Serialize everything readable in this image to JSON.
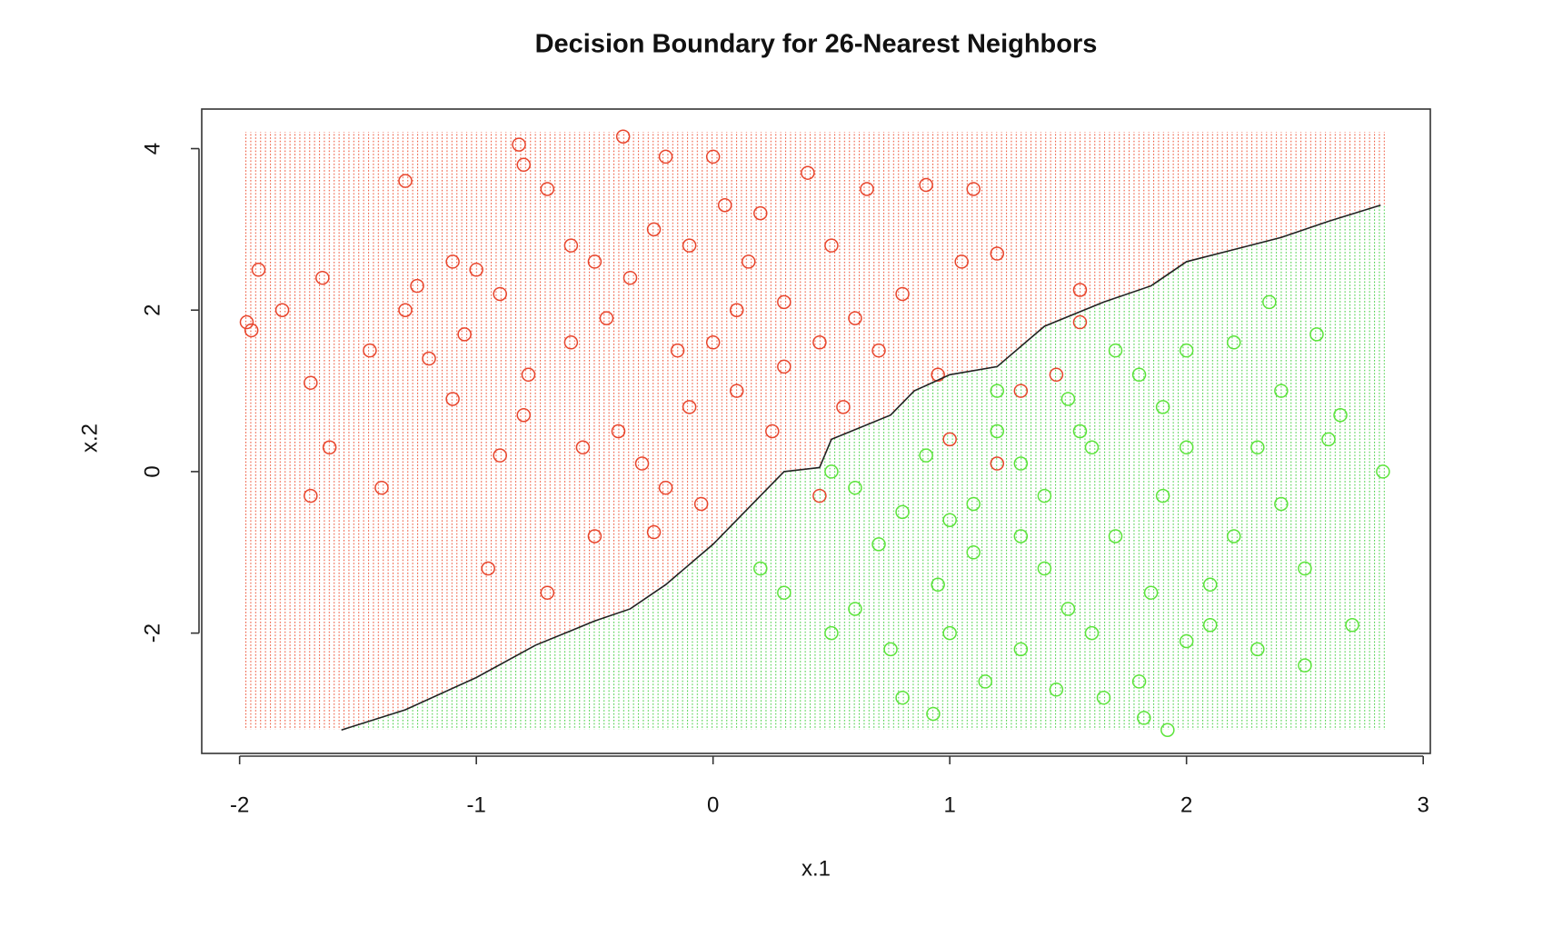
{
  "chart_data": {
    "type": "scatter",
    "title": "Decision Boundary for 26-Nearest Neighbors",
    "x_label": "x.1",
    "y_label": "x.2",
    "xlim": [
      -2.16,
      3.03
    ],
    "ylim": [
      -3.49,
      4.49
    ],
    "xticks": [
      -2,
      -1,
      0,
      1,
      2,
      3
    ],
    "yticks": [
      -2,
      0,
      2,
      4
    ],
    "series": [
      {
        "color": "#e8452c",
        "x": [
          -1.97,
          -1.95,
          -1.92,
          -1.82,
          -1.7,
          -1.7,
          -1.65,
          -1.62,
          -1.45,
          -1.4,
          -1.3,
          -1.25,
          -1.2,
          -1.1,
          -1.05,
          -1.0,
          -0.95,
          -0.9,
          -0.82,
          -0.8,
          -0.78,
          -0.7,
          -0.7,
          -0.6,
          -0.55,
          -0.5,
          -0.45,
          -0.38,
          -0.35,
          -0.3,
          -0.25,
          -0.25,
          -0.2,
          -0.15,
          -0.1,
          -0.05,
          0.0,
          0.05,
          0.1,
          0.15,
          0.2,
          0.25,
          0.3,
          0.4,
          0.45,
          0.45,
          0.5,
          0.55,
          0.65,
          0.7,
          0.8,
          0.9,
          0.95,
          1.05,
          1.1,
          1.2,
          1.3,
          1.45,
          1.55,
          1.55,
          -1.3,
          -0.9,
          -0.6,
          -0.4,
          -0.1,
          0.1,
          0.3,
          -0.5,
          -1.1,
          0.6,
          1.0,
          1.2,
          -0.2,
          0.0,
          -0.8
        ],
        "values": [
          1.85,
          1.75,
          2.5,
          2.0,
          1.1,
          -0.3,
          2.4,
          0.3,
          1.5,
          -0.2,
          3.6,
          2.3,
          1.4,
          0.9,
          1.7,
          2.5,
          -1.2,
          0.2,
          4.05,
          3.8,
          1.2,
          3.5,
          -1.5,
          2.8,
          0.3,
          -0.8,
          1.9,
          4.15,
          2.4,
          0.1,
          3.0,
          -0.75,
          3.9,
          1.5,
          2.8,
          -0.4,
          3.9,
          3.3,
          1.0,
          2.6,
          3.2,
          0.5,
          2.1,
          3.7,
          1.6,
          -0.3,
          2.8,
          0.8,
          3.5,
          1.5,
          2.2,
          3.55,
          1.2,
          2.6,
          3.5,
          2.7,
          1.0,
          1.2,
          1.85,
          2.25,
          2.0,
          2.2,
          1.6,
          0.5,
          0.8,
          2.0,
          1.3,
          2.6,
          2.6,
          1.9,
          0.4,
          0.1,
          -0.2,
          1.6,
          0.7
        ]
      },
      {
        "color": "#5be43a",
        "x": [
          2.83,
          1.92,
          1.82,
          2.35,
          2.55,
          2.65,
          2.7,
          2.5,
          0.5,
          0.8,
          0.93,
          1.15,
          1.45,
          1.65,
          1.8,
          0.3,
          0.6,
          0.2,
          1.0,
          1.3,
          1.6,
          2.0,
          2.3,
          2.1,
          1.85,
          1.4,
          1.1,
          0.8,
          0.6,
          0.5,
          0.9,
          1.2,
          1.5,
          1.8,
          2.0,
          2.2,
          2.4,
          2.6,
          2.4,
          2.2,
          1.9,
          1.6,
          1.4,
          1.1,
          1.3,
          1.7,
          2.0,
          1.0,
          0.7,
          1.5,
          1.9,
          1.2,
          1.7,
          2.1,
          1.3,
          0.95,
          2.5,
          2.3,
          1.55,
          0.75
        ],
        "values": [
          0.0,
          -3.2,
          -3.05,
          2.1,
          1.7,
          0.7,
          -1.9,
          -2.4,
          -2.0,
          -2.8,
          -3.0,
          -2.6,
          -2.7,
          -2.8,
          -2.6,
          -1.5,
          -1.7,
          -1.2,
          -2.0,
          -2.2,
          -2.0,
          -2.1,
          -2.2,
          -1.4,
          -1.5,
          -1.2,
          -1.0,
          -0.5,
          -0.2,
          0.0,
          0.2,
          0.5,
          0.9,
          1.2,
          1.5,
          1.6,
          1.0,
          0.4,
          -0.4,
          -0.8,
          -0.3,
          0.3,
          -0.3,
          -0.4,
          0.1,
          -0.8,
          0.3,
          -0.6,
          -0.9,
          -1.7,
          0.8,
          1.0,
          1.5,
          -1.9,
          -0.8,
          -1.4,
          -1.2,
          0.3,
          0.5,
          -2.2
        ]
      }
    ],
    "boundary": {
      "color": "#222222",
      "x": [
        -1.57,
        -1.3,
        -1.0,
        -0.75,
        -0.5,
        -0.35,
        -0.2,
        0.0,
        0.2,
        0.3,
        0.45,
        0.5,
        0.75,
        0.85,
        1.0,
        1.2,
        1.4,
        1.65,
        1.85,
        2.0,
        2.2,
        2.4,
        2.6,
        2.82
      ],
      "values": [
        -3.2,
        -2.95,
        -2.55,
        -2.15,
        -1.85,
        -1.7,
        -1.4,
        -0.9,
        -0.3,
        0.0,
        0.05,
        0.4,
        0.7,
        1.0,
        1.2,
        1.3,
        1.8,
        2.1,
        2.3,
        2.6,
        2.75,
        2.9,
        3.1,
        3.3
      ]
    },
    "region_colors": [
      "#ee5a3e",
      "#4cd04a"
    ]
  }
}
